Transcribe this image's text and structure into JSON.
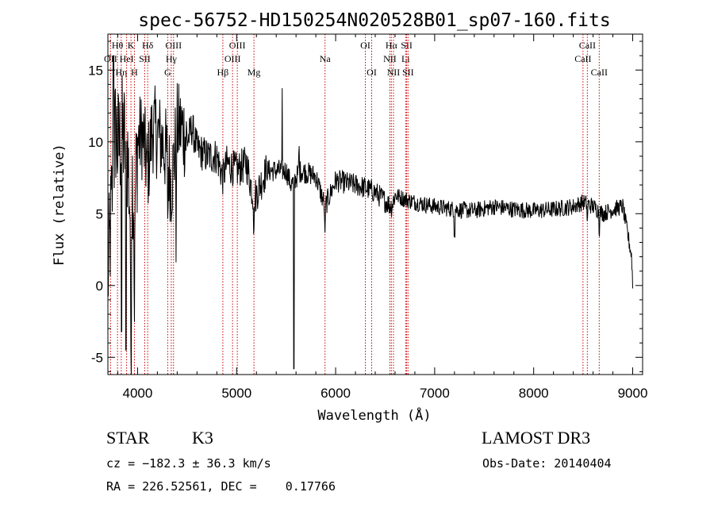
{
  "chart_data": {
    "type": "line",
    "title": "spec-56752-HD150254N020528B01_sp07-160.fits",
    "xlabel": "Wavelength (Å)",
    "ylabel": "Flux (relative)",
    "xlim": [
      3700,
      9100
    ],
    "ylim": [
      -6.2,
      17.5
    ],
    "x_ticks": [
      4000,
      5000,
      6000,
      7000,
      8000,
      9000
    ],
    "y_ticks": [
      -5,
      0,
      5,
      10,
      15
    ],
    "line_color": "#000000",
    "marker_color": "#cc0000",
    "spectrum_anchors": [
      [
        3700,
        0.5
      ],
      [
        3720,
        3.0
      ],
      [
        3740,
        6.0
      ],
      [
        3760,
        9.0
      ],
      [
        3780,
        11.0
      ],
      [
        3800,
        9.5
      ],
      [
        3850,
        10.5
      ],
      [
        3900,
        9.0
      ],
      [
        3933,
        4.0
      ],
      [
        3950,
        8.0
      ],
      [
        3968,
        5.0
      ],
      [
        4000,
        10.0
      ],
      [
        4050,
        10.5
      ],
      [
        4102,
        8.0
      ],
      [
        4150,
        11.0
      ],
      [
        4200,
        10.5
      ],
      [
        4250,
        10.0
      ],
      [
        4300,
        9.0
      ],
      [
        4340,
        7.0
      ],
      [
        4400,
        11.0
      ],
      [
        4450,
        11.0
      ],
      [
        4500,
        10.0
      ],
      [
        4550,
        11.0
      ],
      [
        4600,
        9.5
      ],
      [
        4700,
        9.0
      ],
      [
        4800,
        9.0
      ],
      [
        4861,
        7.5
      ],
      [
        4900,
        8.5
      ],
      [
        5000,
        8.0
      ],
      [
        5100,
        8.5
      ],
      [
        5175,
        6.0
      ],
      [
        5300,
        8.0
      ],
      [
        5400,
        8.0
      ],
      [
        5500,
        8.0
      ],
      [
        5550,
        7.0
      ],
      [
        5650,
        8.0
      ],
      [
        5800,
        7.6
      ],
      [
        5893,
        5.5
      ],
      [
        6000,
        7.3
      ],
      [
        6200,
        7.0
      ],
      [
        6300,
        6.8
      ],
      [
        6400,
        6.5
      ],
      [
        6563,
        5.5
      ],
      [
        6600,
        6.3
      ],
      [
        6700,
        6.0
      ],
      [
        6800,
        5.8
      ],
      [
        7000,
        5.5
      ],
      [
        7200,
        5.3
      ],
      [
        7400,
        5.2
      ],
      [
        7600,
        5.5
      ],
      [
        7800,
        5.3
      ],
      [
        8000,
        5.2
      ],
      [
        8200,
        5.3
      ],
      [
        8400,
        5.5
      ],
      [
        8500,
        5.8
      ],
      [
        8600,
        5.5
      ],
      [
        8700,
        5.0
      ],
      [
        8800,
        5.3
      ],
      [
        8900,
        5.5
      ],
      [
        8990,
        2.0
      ],
      [
        9000,
        0.0
      ]
    ],
    "spectral_lines": [
      {
        "name": "Hθ",
        "wl": 3797,
        "row": 0
      },
      {
        "name": "OII",
        "wl": 3727,
        "row": 1
      },
      {
        "name": "Hη",
        "wl": 3835,
        "row": 2
      },
      {
        "name": "HeI",
        "wl": 3889,
        "row": 1
      },
      {
        "name": "K",
        "wl": 3933,
        "row": 0
      },
      {
        "name": "SII",
        "wl": 4072,
        "row": 1
      },
      {
        "name": "H",
        "wl": 3968,
        "row": 2
      },
      {
        "name": "Hδ",
        "wl": 4102,
        "row": 0
      },
      {
        "name": "OIII",
        "wl": 4363,
        "row": 0
      },
      {
        "name": "Hγ",
        "wl": 4340,
        "row": 1
      },
      {
        "name": "G",
        "wl": 4304,
        "row": 2
      },
      {
        "name": "Hβ",
        "wl": 4861,
        "row": 2
      },
      {
        "name": "OIII",
        "wl": 5007,
        "row": 0
      },
      {
        "name": "OIII",
        "wl": 4959,
        "row": 1
      },
      {
        "name": "Mg",
        "wl": 5175,
        "row": 2
      },
      {
        "name": "Na",
        "wl": 5893,
        "row": 1
      },
      {
        "name": "OI",
        "wl": 6300,
        "row": 0
      },
      {
        "name": "OI",
        "wl": 6364,
        "row": 2
      },
      {
        "name": "Hα",
        "wl": 6563,
        "row": 0
      },
      {
        "name": "NII",
        "wl": 6548,
        "row": 1
      },
      {
        "name": "NII",
        "wl": 6584,
        "row": 2
      },
      {
        "name": "SII",
        "wl": 6717,
        "row": 0
      },
      {
        "name": "Li",
        "wl": 6707,
        "row": 1
      },
      {
        "name": "SII",
        "wl": 6731,
        "row": 2
      },
      {
        "name": "CaII",
        "wl": 8542,
        "row": 0
      },
      {
        "name": "CaII",
        "wl": 8498,
        "row": 1
      },
      {
        "name": "CaII",
        "wl": 8662,
        "row": 2
      }
    ]
  },
  "info": {
    "class": "STAR",
    "subclass": "K3",
    "survey": "LAMOST DR3",
    "cz": "cz = −182.3 ± 36.3 km/s",
    "obs_date": "Obs-Date: 20140404",
    "radec": "RA = 226.52561, DEC =    0.17766"
  }
}
